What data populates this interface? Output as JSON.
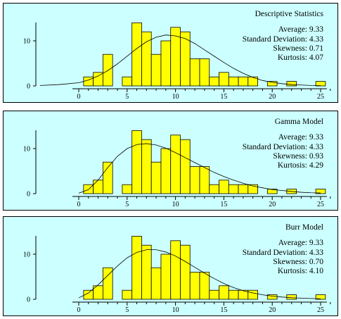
{
  "chart_data": [
    {
      "type": "bar",
      "title": "Descriptive Statistics",
      "stats": [
        {
          "label": "Average",
          "value": "9.33"
        },
        {
          "label": "Standard Deviation",
          "value": "4.33"
        },
        {
          "label": "Skewness",
          "value": "0.71"
        },
        {
          "label": "Kurtosis",
          "value": "4.07"
        }
      ],
      "xlim": [
        -4,
        26
      ],
      "ylim": [
        0,
        15
      ],
      "xticks": [
        0,
        5,
        10,
        15,
        20,
        25
      ],
      "yticks": [
        0,
        10
      ],
      "bars": {
        "x": [
          1,
          2,
          3,
          5,
          6,
          7,
          8,
          9,
          10,
          11,
          12,
          13,
          14,
          15,
          16,
          17,
          18,
          20,
          22,
          25
        ],
        "values": [
          2,
          3,
          7,
          2,
          14,
          12,
          7,
          10,
          13,
          12,
          6,
          6,
          2,
          3,
          2,
          2,
          2,
          1,
          1,
          1
        ]
      },
      "curve": {
        "x": [
          -4,
          -2,
          0,
          1,
          2,
          3,
          4,
          5,
          6,
          7,
          8,
          9,
          10,
          11,
          12,
          13,
          14,
          15,
          16,
          17,
          18,
          19,
          20,
          21,
          22,
          23,
          24,
          25
        ],
        "y": [
          0.1,
          0.3,
          0.7,
          1.3,
          2.2,
          3.4,
          4.9,
          6.6,
          8.3,
          9.8,
          10.8,
          11.3,
          11.1,
          10.5,
          9.4,
          8.0,
          6.6,
          5.2,
          3.9,
          2.8,
          1.9,
          1.2,
          0.8,
          0.5,
          0.3,
          0.2,
          0.1,
          0.05
        ]
      }
    },
    {
      "type": "bar",
      "title": "Gamma Model",
      "stats": [
        {
          "label": "Average",
          "value": "9.33"
        },
        {
          "label": "Standard Deviation",
          "value": "4.33"
        },
        {
          "label": "Skewness",
          "value": "0.93"
        },
        {
          "label": "Kurtosis",
          "value": "4.29"
        }
      ],
      "xlim": [
        -1,
        26
      ],
      "ylim": [
        0,
        15
      ],
      "xticks": [
        0,
        5,
        10,
        15,
        20,
        25
      ],
      "yticks": [
        0,
        10
      ],
      "bars": {
        "x": [
          1,
          2,
          3,
          5,
          6,
          7,
          8,
          9,
          10,
          11,
          12,
          13,
          14,
          15,
          16,
          17,
          18,
          20,
          22,
          25
        ],
        "values": [
          2,
          3,
          7,
          2,
          14,
          12,
          7,
          10,
          13,
          12,
          6,
          6,
          2,
          3,
          2,
          2,
          2,
          1,
          1,
          1
        ]
      },
      "curve": {
        "x": [
          0,
          1,
          2,
          3,
          4,
          5,
          6,
          7,
          8,
          9,
          10,
          11,
          12,
          13,
          14,
          15,
          16,
          17,
          18,
          19,
          20,
          21,
          22,
          23,
          24,
          25
        ],
        "y": [
          0.1,
          0.9,
          3.0,
          5.8,
          8.3,
          10.0,
          10.9,
          11.1,
          10.8,
          10.1,
          9.1,
          8.0,
          6.9,
          5.8,
          4.7,
          3.8,
          3.0,
          2.3,
          1.7,
          1.3,
          0.9,
          0.7,
          0.5,
          0.3,
          0.2,
          0.15
        ]
      }
    },
    {
      "type": "bar",
      "title": "Burr Model",
      "stats": [
        {
          "label": "Average",
          "value": "9.33"
        },
        {
          "label": "Standard Deviation",
          "value": "4.33"
        },
        {
          "label": "Skewness",
          "value": "0.70"
        },
        {
          "label": "Kurtosis",
          "value": "4.10"
        }
      ],
      "xlim": [
        -1,
        26
      ],
      "ylim": [
        0,
        15
      ],
      "xticks": [
        0,
        5,
        10,
        15,
        20,
        25
      ],
      "yticks": [
        0,
        10
      ],
      "bars": {
        "x": [
          1,
          2,
          3,
          5,
          6,
          7,
          8,
          9,
          10,
          11,
          12,
          13,
          14,
          15,
          16,
          17,
          18,
          20,
          22,
          25
        ],
        "values": [
          2,
          3,
          7,
          2,
          14,
          12,
          7,
          10,
          13,
          12,
          6,
          6,
          2,
          3,
          2,
          2,
          2,
          1,
          1,
          1
        ]
      },
      "curve": {
        "x": [
          0,
          1,
          2,
          3,
          4,
          5,
          6,
          7,
          8,
          9,
          10,
          11,
          12,
          13,
          14,
          15,
          16,
          17,
          18,
          19,
          20,
          21,
          22,
          23,
          24,
          25
        ],
        "y": [
          0.3,
          1.4,
          3.2,
          5.3,
          7.4,
          9.2,
          10.4,
          11.0,
          11.0,
          10.5,
          9.6,
          8.4,
          7.1,
          5.8,
          4.6,
          3.5,
          2.6,
          1.9,
          1.4,
          1.0,
          0.7,
          0.5,
          0.35,
          0.25,
          0.18,
          0.12
        ]
      }
    }
  ],
  "colors": {
    "bar_fill": "#ffff00",
    "bar_stroke": "#000000",
    "panel_bg": "#ccffff",
    "line": "#000000"
  }
}
